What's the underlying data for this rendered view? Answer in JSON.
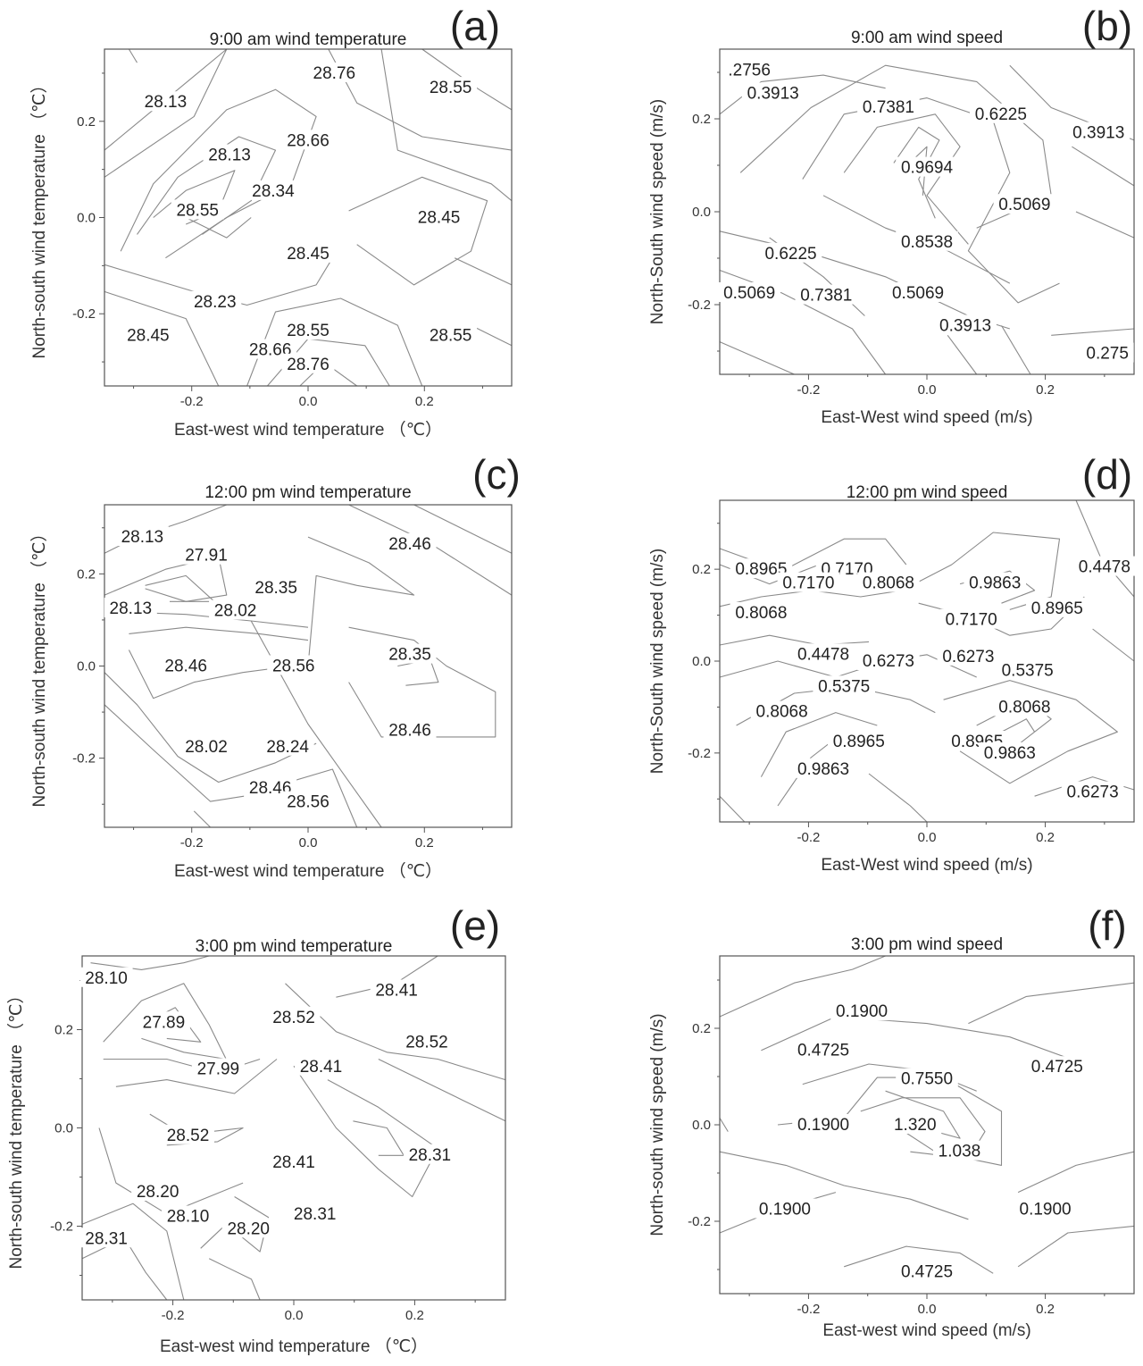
{
  "chart_data": [
    {
      "type": "contour",
      "panel_letter": "(a)",
      "title": "9:00 am wind temperature",
      "xlabel": "East-west wind temperature （℃）",
      "ylabel": "North-south wind temperature （℃）",
      "xlim": [
        -0.35,
        0.35
      ],
      "ylim": [
        -0.35,
        0.35
      ],
      "xticks": [
        "-0.2",
        "0.0",
        "0.2"
      ],
      "yticks": [
        "-0.2",
        "0.0",
        "0.2"
      ],
      "contour_labels": [
        {
          "text": "28.76",
          "x": 0.045,
          "y": 0.3
        },
        {
          "text": "28.55",
          "x": 0.245,
          "y": 0.27
        },
        {
          "text": "28.13",
          "x": -0.245,
          "y": 0.24
        },
        {
          "text": "28.66",
          "x": 0.0,
          "y": 0.16
        },
        {
          "text": "28.13",
          "x": -0.135,
          "y": 0.13
        },
        {
          "text": "28.34",
          "x": -0.06,
          "y": 0.055
        },
        {
          "text": "28.55",
          "x": -0.19,
          "y": 0.015
        },
        {
          "text": "28.45",
          "x": 0.225,
          "y": 0.0
        },
        {
          "text": "28.45",
          "x": 0.0,
          "y": -0.075
        },
        {
          "text": "28.23",
          "x": -0.16,
          "y": -0.175
        },
        {
          "text": "28.45",
          "x": -0.275,
          "y": -0.245
        },
        {
          "text": "28.55",
          "x": 0.0,
          "y": -0.235
        },
        {
          "text": "28.55",
          "x": 0.245,
          "y": -0.245
        },
        {
          "text": "28.66",
          "x": -0.065,
          "y": -0.275
        },
        {
          "text": "28.76",
          "x": 0.0,
          "y": -0.305
        }
      ]
    },
    {
      "type": "contour",
      "panel_letter": "(b)",
      "title": "9:00 am wind speed",
      "xlabel": "East-West wind speed (m/s)",
      "ylabel": "North-South wind speed (m/s)",
      "xlim": [
        -0.35,
        0.35
      ],
      "ylim": [
        -0.35,
        0.35
      ],
      "xticks": [
        "-0.2",
        "0.0",
        "0.2"
      ],
      "yticks": [
        "-0.2",
        "0.0",
        "0.2"
      ],
      "contour_labels": [
        {
          "text": ".2756",
          "x": -0.3,
          "y": 0.305
        },
        {
          "text": "0.3913",
          "x": -0.26,
          "y": 0.255
        },
        {
          "text": "0.7381",
          "x": -0.065,
          "y": 0.225
        },
        {
          "text": "0.6225",
          "x": 0.125,
          "y": 0.21
        },
        {
          "text": "0.3913",
          "x": 0.29,
          "y": 0.17
        },
        {
          "text": "0.9694",
          "x": 0.0,
          "y": 0.095
        },
        {
          "text": "0.5069",
          "x": 0.165,
          "y": 0.015
        },
        {
          "text": "0.8538",
          "x": 0.0,
          "y": -0.065
        },
        {
          "text": "0.6225",
          "x": -0.23,
          "y": -0.09
        },
        {
          "text": "0.5069",
          "x": -0.3,
          "y": -0.175
        },
        {
          "text": "0.7381",
          "x": -0.17,
          "y": -0.18
        },
        {
          "text": "0.5069",
          "x": -0.015,
          "y": -0.175
        },
        {
          "text": "0.3913",
          "x": 0.065,
          "y": -0.245
        },
        {
          "text": "0.275",
          "x": 0.305,
          "y": -0.305
        }
      ]
    },
    {
      "type": "contour",
      "panel_letter": "(c)",
      "title": "12:00 pm wind temperature",
      "xlabel": "East-west wind temperature （℃）",
      "ylabel": "North-south wind temperature （℃）",
      "xlim": [
        -0.35,
        0.35
      ],
      "ylim": [
        -0.35,
        0.35
      ],
      "xticks": [
        "-0.2",
        "0.0",
        "0.2"
      ],
      "yticks": [
        "-0.2",
        "0.0",
        "0.2"
      ],
      "contour_labels": [
        {
          "text": "28.13",
          "x": -0.285,
          "y": 0.28
        },
        {
          "text": "28.46",
          "x": 0.175,
          "y": 0.265
        },
        {
          "text": "27.91",
          "x": -0.175,
          "y": 0.24
        },
        {
          "text": "28.35",
          "x": -0.055,
          "y": 0.17
        },
        {
          "text": "28.13",
          "x": -0.305,
          "y": 0.125
        },
        {
          "text": "28.02",
          "x": -0.125,
          "y": 0.12
        },
        {
          "text": "28.35",
          "x": 0.175,
          "y": 0.025
        },
        {
          "text": "28.46",
          "x": -0.21,
          "y": 0.0
        },
        {
          "text": "28.56",
          "x": -0.025,
          "y": 0.0
        },
        {
          "text": "28.46",
          "x": 0.175,
          "y": -0.14
        },
        {
          "text": "28.02",
          "x": -0.175,
          "y": -0.175
        },
        {
          "text": "28.24",
          "x": -0.035,
          "y": -0.175
        },
        {
          "text": "28.46",
          "x": -0.065,
          "y": -0.265
        },
        {
          "text": "28.56",
          "x": 0.0,
          "y": -0.295
        }
      ]
    },
    {
      "type": "contour",
      "panel_letter": "(d)",
      "title": "12:00 pm wind speed",
      "xlabel": "East-West wind speed (m/s)",
      "ylabel": "North-South wind speed (m/s)",
      "xlim": [
        -0.35,
        0.35
      ],
      "ylim": [
        -0.35,
        0.35
      ],
      "xticks": [
        "-0.2",
        "0.0",
        "0.2"
      ],
      "yticks": [
        "-0.2",
        "0.0",
        "0.2"
      ],
      "contour_labels": [
        {
          "text": "0.8965",
          "x": -0.28,
          "y": 0.2
        },
        {
          "text": "0.7170",
          "x": -0.135,
          "y": 0.2
        },
        {
          "text": "0.4478",
          "x": 0.3,
          "y": 0.205
        },
        {
          "text": "0.7170",
          "x": -0.2,
          "y": 0.17
        },
        {
          "text": "0.8068",
          "x": -0.065,
          "y": 0.17
        },
        {
          "text": "0.9863",
          "x": 0.115,
          "y": 0.17
        },
        {
          "text": "0.8965",
          "x": 0.22,
          "y": 0.115
        },
        {
          "text": "0.8068",
          "x": -0.28,
          "y": 0.105
        },
        {
          "text": "0.7170",
          "x": 0.075,
          "y": 0.09
        },
        {
          "text": "0.4478",
          "x": -0.175,
          "y": 0.015
        },
        {
          "text": "0.6273",
          "x": -0.065,
          "y": 0.0
        },
        {
          "text": "0.6273",
          "x": 0.07,
          "y": 0.01
        },
        {
          "text": "0.5375",
          "x": 0.17,
          "y": -0.02
        },
        {
          "text": "0.5375",
          "x": -0.14,
          "y": -0.055
        },
        {
          "text": "0.8068",
          "x": -0.245,
          "y": -0.11
        },
        {
          "text": "0.8068",
          "x": 0.165,
          "y": -0.1
        },
        {
          "text": "0.8965",
          "x": -0.115,
          "y": -0.175
        },
        {
          "text": "0.8965",
          "x": 0.085,
          "y": -0.175
        },
        {
          "text": "0.9863",
          "x": 0.14,
          "y": -0.2
        },
        {
          "text": "0.9863",
          "x": -0.175,
          "y": -0.235
        },
        {
          "text": "0.6273",
          "x": 0.28,
          "y": -0.285
        }
      ]
    },
    {
      "type": "contour",
      "panel_letter": "(e)",
      "title": "3:00 pm wind temperature",
      "xlabel": "East-west wind temperature （℃）",
      "ylabel": "North-south wind temperature （℃）",
      "xlim": [
        -0.35,
        0.35
      ],
      "ylim": [
        -0.35,
        0.35
      ],
      "xticks": [
        "-0.2",
        "0.0",
        "0.2"
      ],
      "yticks": [
        "-0.2",
        "0.0",
        "0.2"
      ],
      "contour_labels": [
        {
          "text": "28.10",
          "x": -0.31,
          "y": 0.305
        },
        {
          "text": "28.41",
          "x": 0.17,
          "y": 0.28
        },
        {
          "text": "28.52",
          "x": 0.0,
          "y": 0.225
        },
        {
          "text": "27.89",
          "x": -0.215,
          "y": 0.215
        },
        {
          "text": "28.52",
          "x": 0.22,
          "y": 0.175
        },
        {
          "text": "28.41",
          "x": 0.045,
          "y": 0.125
        },
        {
          "text": "27.99",
          "x": -0.125,
          "y": 0.12
        },
        {
          "text": "28.52",
          "x": -0.175,
          "y": -0.015
        },
        {
          "text": "28.31",
          "x": 0.225,
          "y": -0.055
        },
        {
          "text": "28.41",
          "x": 0.0,
          "y": -0.07
        },
        {
          "text": "28.20",
          "x": -0.225,
          "y": -0.13
        },
        {
          "text": "28.10",
          "x": -0.175,
          "y": -0.18
        },
        {
          "text": "28.31",
          "x": 0.035,
          "y": -0.175
        },
        {
          "text": "28.20",
          "x": -0.075,
          "y": -0.205
        },
        {
          "text": "28.31",
          "x": -0.31,
          "y": -0.225
        }
      ]
    },
    {
      "type": "contour",
      "panel_letter": "(f)",
      "title": "3:00 pm wind speed",
      "xlabel": "East-west wind speed (m/s)",
      "ylabel": "North-south wind speed (m/s)",
      "xlim": [
        -0.35,
        0.35
      ],
      "ylim": [
        -0.35,
        0.35
      ],
      "xticks": [
        "-0.2",
        "0.0",
        "0.2"
      ],
      "yticks": [
        "-0.2",
        "0.0",
        "0.2"
      ],
      "contour_labels": [
        {
          "text": "0.1900",
          "x": -0.11,
          "y": 0.235
        },
        {
          "text": "0.4725",
          "x": -0.175,
          "y": 0.155
        },
        {
          "text": "0.4725",
          "x": 0.22,
          "y": 0.12
        },
        {
          "text": "0.7550",
          "x": 0.0,
          "y": 0.095
        },
        {
          "text": "0.1900",
          "x": -0.175,
          "y": 0.0
        },
        {
          "text": "1.320",
          "x": -0.02,
          "y": 0.0
        },
        {
          "text": "1.038",
          "x": 0.055,
          "y": -0.055
        },
        {
          "text": "0.1900",
          "x": -0.24,
          "y": -0.175
        },
        {
          "text": "0.1900",
          "x": 0.2,
          "y": -0.175
        },
        {
          "text": "0.4725",
          "x": 0.0,
          "y": -0.305
        }
      ]
    }
  ]
}
